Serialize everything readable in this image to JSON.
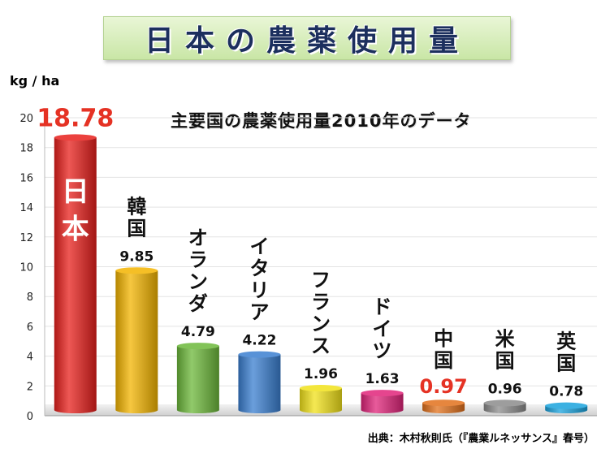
{
  "title": "日本の農薬使用量",
  "unit_label": "kg / ha",
  "source": "出典：木村秋則氏（『農業ルネッサンス』春号）",
  "colors": {
    "title_text": "#1c2f5e",
    "highlight_value": "#e53224"
  },
  "chart_data": {
    "type": "bar",
    "title": "主要国の農薬使用量2010年のデータ",
    "ylabel": "kg / ha",
    "ylim": [
      0,
      20
    ],
    "yticks": [
      0,
      2,
      4,
      6,
      8,
      10,
      12,
      14,
      16,
      18,
      20
    ],
    "grid": true,
    "categories": [
      "日本",
      "韓国",
      "オランダ",
      "イタリア",
      "フランス",
      "ドイツ",
      "中国",
      "米国",
      "英国"
    ],
    "values": [
      18.78,
      9.85,
      4.79,
      4.22,
      1.96,
      1.63,
      0.97,
      0.96,
      0.78
    ],
    "value_labels": [
      "18.78",
      "9.85",
      "4.79",
      "4.22",
      "1.96",
      "1.63",
      "0.97",
      "0.96",
      "0.78"
    ],
    "bar_colors": [
      "#e8201c",
      "#f3b400",
      "#6cb83a",
      "#3a7fd0",
      "#f1e21a",
      "#e0247a",
      "#e2711c",
      "#8c8c8c",
      "#1aa3dd"
    ],
    "highlighted": [
      "日本",
      "中国"
    ]
  }
}
